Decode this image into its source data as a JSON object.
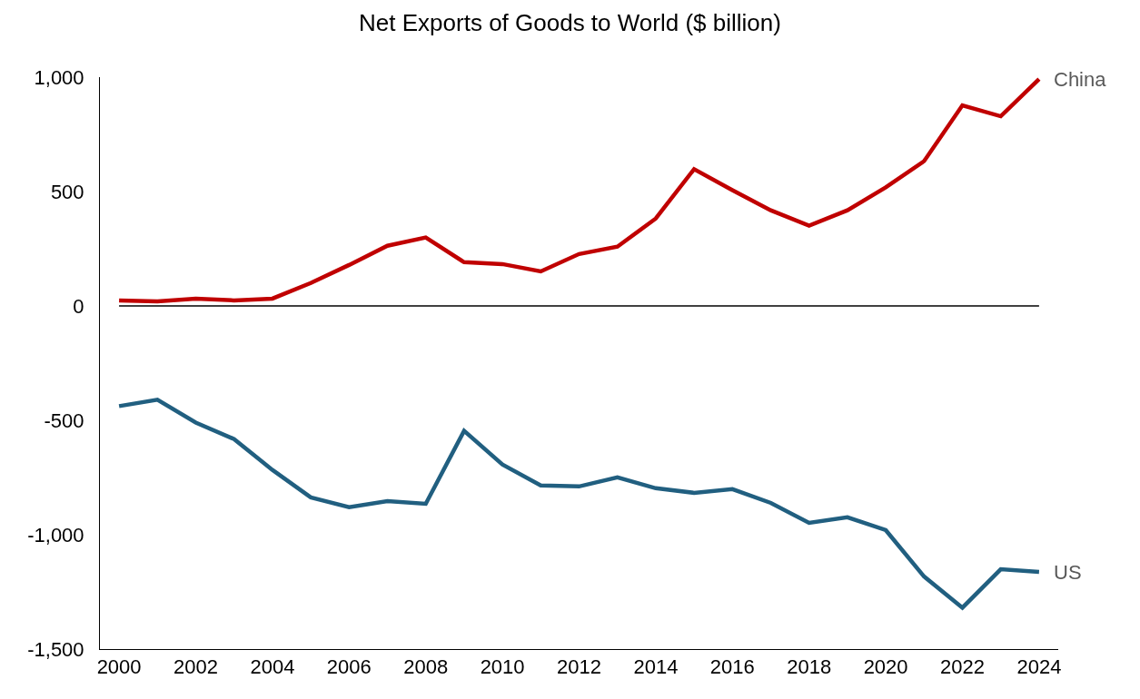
{
  "chart_data": {
    "type": "line",
    "title": "Net Exports of Goods to World ($ billion)",
    "x": [
      2000,
      2001,
      2002,
      2003,
      2004,
      2005,
      2006,
      2007,
      2008,
      2009,
      2010,
      2011,
      2012,
      2013,
      2014,
      2015,
      2016,
      2017,
      2018,
      2019,
      2020,
      2021,
      2022,
      2023,
      2024
    ],
    "series": [
      {
        "name": "China",
        "color": "#c00000",
        "values": [
          24,
          20,
          32,
          24,
          32,
          100,
          179,
          263,
          299,
          191,
          183,
          151,
          227,
          259,
          382,
          598,
          506,
          418,
          351,
          418,
          518,
          633,
          877,
          829,
          992
        ]
      },
      {
        "name": "US",
        "color": "#215f80",
        "values": [
          -438,
          -410,
          -510,
          -582,
          -717,
          -837,
          -880,
          -853,
          -865,
          -546,
          -693,
          -785,
          -789,
          -749,
          -797,
          -817,
          -801,
          -861,
          -948,
          -924,
          -980,
          -1183,
          -1319,
          -1151,
          -1163
        ]
      }
    ],
    "xlim": [
      1999.5,
      2024.5
    ],
    "xticks": [
      2000,
      2002,
      2004,
      2006,
      2008,
      2010,
      2012,
      2014,
      2016,
      2018,
      2020,
      2022,
      2024
    ],
    "ylim": [
      -1500,
      1000
    ],
    "yticks": [
      {
        "value": -1500,
        "label": "-1,500"
      },
      {
        "value": -1000,
        "label": "-1,000"
      },
      -500,
      0,
      500,
      {
        "value": 1000,
        "label": "1,000"
      }
    ],
    "ref_lines": [
      {
        "axis": "y",
        "value": 0,
        "color": "#000000",
        "line_style": "solid"
      }
    ],
    "grid": false,
    "legend": false,
    "marker": "none",
    "line_style": "solid"
  }
}
